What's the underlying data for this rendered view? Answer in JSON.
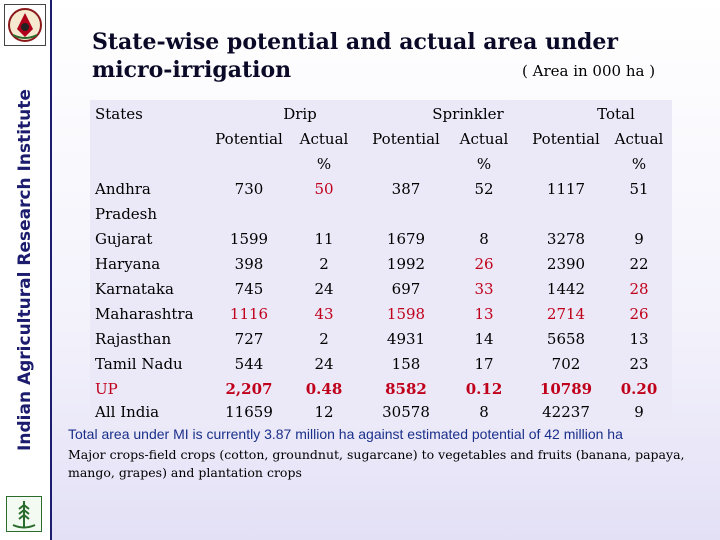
{
  "sidebar": {
    "vertical_title": "Indian Agricultural Research Institute",
    "top_logo": "iari-emblem-icon",
    "bottom_logo": "wheat-emblem-icon"
  },
  "title": "State-wise potential and actual area under micro-irrigation",
  "unit": "( Area in 000 ha )",
  "table": {
    "states_header": "States",
    "groups": [
      "Drip",
      "Sprinkler",
      "Total"
    ],
    "subheaders": [
      "Potential",
      "Actual",
      "Potential",
      "Actual",
      "Potential",
      "Actual"
    ],
    "percent_label": "%",
    "rows": [
      {
        "state": "Andhra",
        "state2": "Pradesh",
        "drip_pot": "730",
        "drip_act": "50",
        "spr_pot": "387",
        "spr_act": "52",
        "tot_pot": "1117",
        "tot_act": "51"
      },
      {
        "state": "Gujarat",
        "drip_pot": "1599",
        "drip_act": "11",
        "spr_pot": "1679",
        "spr_act": "8",
        "tot_pot": "3278",
        "tot_act": "9"
      },
      {
        "state": "Haryana",
        "drip_pot": "398",
        "drip_act": "2",
        "spr_pot": "1992",
        "spr_act": "26",
        "tot_pot": "2390",
        "tot_act": "22"
      },
      {
        "state": "Karnataka",
        "drip_pot": "745",
        "drip_act": "24",
        "spr_pot": "697",
        "spr_act": "33",
        "tot_pot": "1442",
        "tot_act": "28"
      },
      {
        "state": "Maharashtra",
        "drip_pot": "1116",
        "drip_act": "43",
        "spr_pot": "1598",
        "spr_act": "13",
        "tot_pot": "2714",
        "tot_act": "26"
      },
      {
        "state": "Rajasthan",
        "drip_pot": "727",
        "drip_act": "2",
        "spr_pot": "4931",
        "spr_act": "14",
        "tot_pot": "5658",
        "tot_act": "13"
      },
      {
        "state": "Tamil Nadu",
        "drip_pot": "544",
        "drip_act": "24",
        "spr_pot": "158",
        "spr_act": "17",
        "tot_pot": "702",
        "tot_act": "23"
      },
      {
        "state": "UP",
        "drip_pot": "2,207",
        "drip_act": "0.48",
        "spr_pot": "8582",
        "spr_act": "0.12",
        "tot_pot": "10789",
        "tot_act": "0.20"
      },
      {
        "state": "All India",
        "drip_pot": "11659",
        "drip_act": "12",
        "spr_pot": "30578",
        "spr_act": "8",
        "tot_pot": "42237",
        "tot_act": "9"
      }
    ]
  },
  "note_1": "Total area under MI is currently 3.87 million ha against estimated potential of 42 million ha",
  "note_2": "Major crops-field crops (cotton, groundnut, sugarcane) to vegetables and fruits (banana, papaya, mango, grapes) and plantation crops",
  "colors": {
    "highlight": "#c0001a",
    "brand": "#1c1c6e",
    "note_blue": "#1a2f8a"
  }
}
